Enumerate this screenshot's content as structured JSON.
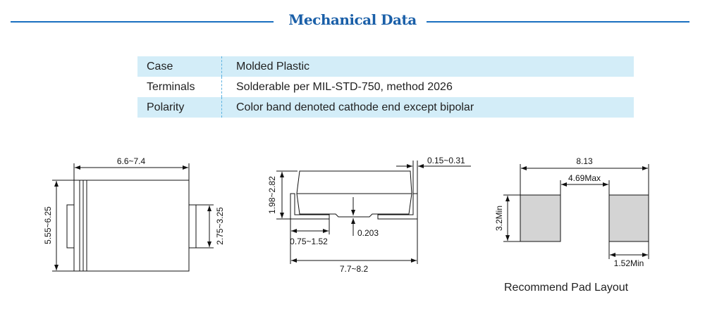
{
  "title": "Mechanical Data",
  "table": [
    {
      "label": "Case",
      "value": "Molded Plastic"
    },
    {
      "label": "Terminals",
      "value": "Solderable per MIL-STD-750, method 2026"
    },
    {
      "label": "Polarity",
      "value": "Color band denoted cathode end except bipolar"
    }
  ],
  "top_view": {
    "width": "6.6~7.4",
    "height": "5.55~6.25",
    "lead_height": "2.75~3.25"
  },
  "side_view": {
    "height": "1.98~2.82",
    "lead_thickness": "0.15~0.31",
    "lead_length": "0.75~1.52",
    "standoff": "0.203",
    "overall_length": "7.7~8.2"
  },
  "pad_layout": {
    "overall": "8.13",
    "gap": "4.69Max",
    "pad_height": "3.2Min",
    "pad_width": "1.52Min",
    "caption": "Recommend Pad Layout"
  },
  "colors": {
    "title": "#1a5fa8",
    "row_shade": "#d3edf8",
    "pad": "#d4d4d4"
  }
}
